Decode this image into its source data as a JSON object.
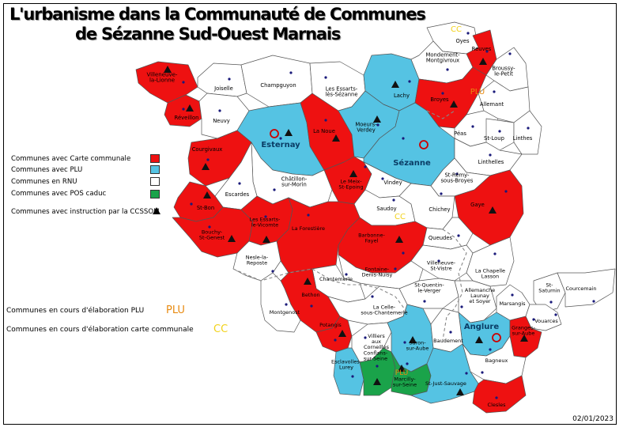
{
  "title": {
    "line1": "L'urbanisme dans la Communauté de Communes",
    "line2": "de Sézanne Sud-Ouest Marnais"
  },
  "legend": {
    "carte": "Communes avec Carte communale",
    "plu": "Communes avec PLU",
    "rnu": "Communes en RNU",
    "pos": "Communes avec POS caduc",
    "instruction": "Communes avec instruction par la CCSSOM",
    "elab_plu": "Communes en cours d'élaboration PLU",
    "elab_plu_badge": "PLU",
    "elab_cc": "Communes en cours d'élaboration carte communale",
    "elab_cc_badge": "CC"
  },
  "colors": {
    "carte": "#ee1111",
    "plu": "#55c3e3",
    "rnu": "#ffffff",
    "pos": "#1aa34a",
    "badge_plu": "#e88a10",
    "badge_cc": "#f2d21a"
  },
  "date": "02/01/2023",
  "communes": [
    {
      "name": "Villeneuve-\nla-Lionne",
      "status": "carte",
      "instruction": true
    },
    {
      "name": "Joiselle",
      "status": "rnu",
      "instruction": false
    },
    {
      "name": "Champguyon",
      "status": "rnu",
      "instruction": false
    },
    {
      "name": "Réveillon",
      "status": "carte",
      "instruction": true
    },
    {
      "name": "Neuvy",
      "status": "rnu",
      "instruction": false
    },
    {
      "name": "Esternay",
      "status": "plu",
      "instruction": true
    },
    {
      "name": "La Noue",
      "status": "carte",
      "instruction": true
    },
    {
      "name": "Les Essarts-\nlès-Sézanne",
      "status": "rnu",
      "instruction": false
    },
    {
      "name": "Lachy",
      "status": "plu",
      "instruction": true
    },
    {
      "name": "Oyes",
      "status": "rnu",
      "instruction": false
    },
    {
      "name": "Mondement-\nMontgivroux",
      "status": "rnu",
      "instruction": false
    },
    {
      "name": "Reuves",
      "status": "carte",
      "instruction": true
    },
    {
      "name": "Broussy-\nle-Petit",
      "status": "rnu",
      "instruction": false
    },
    {
      "name": "Broyes",
      "status": "carte",
      "instruction": true
    },
    {
      "name": "Allemant",
      "status": "rnu",
      "instruction": false
    },
    {
      "name": "Moeurs-\nVerdey",
      "status": "plu",
      "instruction": true
    },
    {
      "name": "Péas",
      "status": "rnu",
      "instruction": false
    },
    {
      "name": "St-Loup",
      "status": "rnu",
      "instruction": false
    },
    {
      "name": "Linthes",
      "status": "rnu",
      "instruction": false
    },
    {
      "name": "Courgivaux",
      "status": "carte",
      "instruction": true
    },
    {
      "name": "Sézanne",
      "status": "plu",
      "instruction": false
    },
    {
      "name": "Linthelles",
      "status": "rnu",
      "instruction": false
    },
    {
      "name": "Le Meix-\nSt-Epoing",
      "status": "carte",
      "instruction": true
    },
    {
      "name": "Châtillon-\nsur-Morin",
      "status": "rnu",
      "instruction": false
    },
    {
      "name": "Escardes",
      "status": "rnu",
      "instruction": false
    },
    {
      "name": "Vindey",
      "status": "rnu",
      "instruction": false
    },
    {
      "name": "St-Rémy-\nsous-Broyes",
      "status": "rnu",
      "instruction": false
    },
    {
      "name": "St-Bon",
      "status": "carte",
      "instruction": true
    },
    {
      "name": "Saudoy",
      "status": "rnu",
      "instruction": false
    },
    {
      "name": "Chichey",
      "status": "rnu",
      "instruction": false
    },
    {
      "name": "Gaye",
      "status": "carte",
      "instruction": true
    },
    {
      "name": "Bouchy-\nSt-Genest",
      "status": "carte",
      "instruction": true
    },
    {
      "name": "Les Essarts-\nle-Vicomte",
      "status": "carte",
      "instruction": true
    },
    {
      "name": "La Forestière",
      "status": "carte",
      "instruction": false
    },
    {
      "name": "Barbonne-\nFayel",
      "status": "carte",
      "instruction": true
    },
    {
      "name": "Queudes",
      "status": "rnu",
      "instruction": false
    },
    {
      "name": "Nesle-la-\nReposte",
      "status": "rnu",
      "instruction": false
    },
    {
      "name": "Villeneuve-\nSt-Vistre",
      "status": "rnu",
      "instruction": false
    },
    {
      "name": "Fontaine-\nDenis-Nuisy",
      "status": "rnu",
      "instruction": false
    },
    {
      "name": "La Chapelle\nLasson",
      "status": "rnu",
      "instruction": false
    },
    {
      "name": "Chantemerle",
      "status": "rnu",
      "instruction": false
    },
    {
      "name": "St-Quentin-\nle-Verger",
      "status": "rnu",
      "instruction": false
    },
    {
      "name": "Allemanche\nLaunay\net Soyer",
      "status": "rnu",
      "instruction": false
    },
    {
      "name": "St-\nSaturnin",
      "status": "rnu",
      "instruction": false
    },
    {
      "name": "Courcemain",
      "status": "rnu",
      "instruction": false
    },
    {
      "name": "Bethon",
      "status": "carte",
      "instruction": true
    },
    {
      "name": "Marsangis",
      "status": "rnu",
      "instruction": false
    },
    {
      "name": "La Celle-\nsous-Chantemerle",
      "status": "rnu",
      "instruction": false
    },
    {
      "name": "Montgenost",
      "status": "rnu",
      "instruction": false
    },
    {
      "name": "Anglure",
      "status": "plu",
      "instruction": true
    },
    {
      "name": "Vouarces",
      "status": "rnu",
      "instruction": false
    },
    {
      "name": "Potangis",
      "status": "carte",
      "instruction": true
    },
    {
      "name": "Granges-\nsur-Aube",
      "status": "carte",
      "instruction": true
    },
    {
      "name": "Villiers\naux\nCorneilles",
      "status": "rnu",
      "instruction": false
    },
    {
      "name": "Saron-\nsur-Aube",
      "status": "plu",
      "instruction": true
    },
    {
      "name": "Baudement",
      "status": "rnu",
      "instruction": false
    },
    {
      "name": "Esclavolles-\nLurey",
      "status": "plu",
      "instruction": false
    },
    {
      "name": "Conflans-\nsur-Seine",
      "status": "pos",
      "instruction": true
    },
    {
      "name": "Marcilly-\nsur-Seine",
      "status": "pos",
      "instruction": true
    },
    {
      "name": "Bagneux",
      "status": "rnu",
      "instruction": false
    },
    {
      "name": "St-Just-Sauvage",
      "status": "plu",
      "instruction": true
    },
    {
      "name": "Clesles",
      "status": "carte",
      "instruction": false
    }
  ]
}
